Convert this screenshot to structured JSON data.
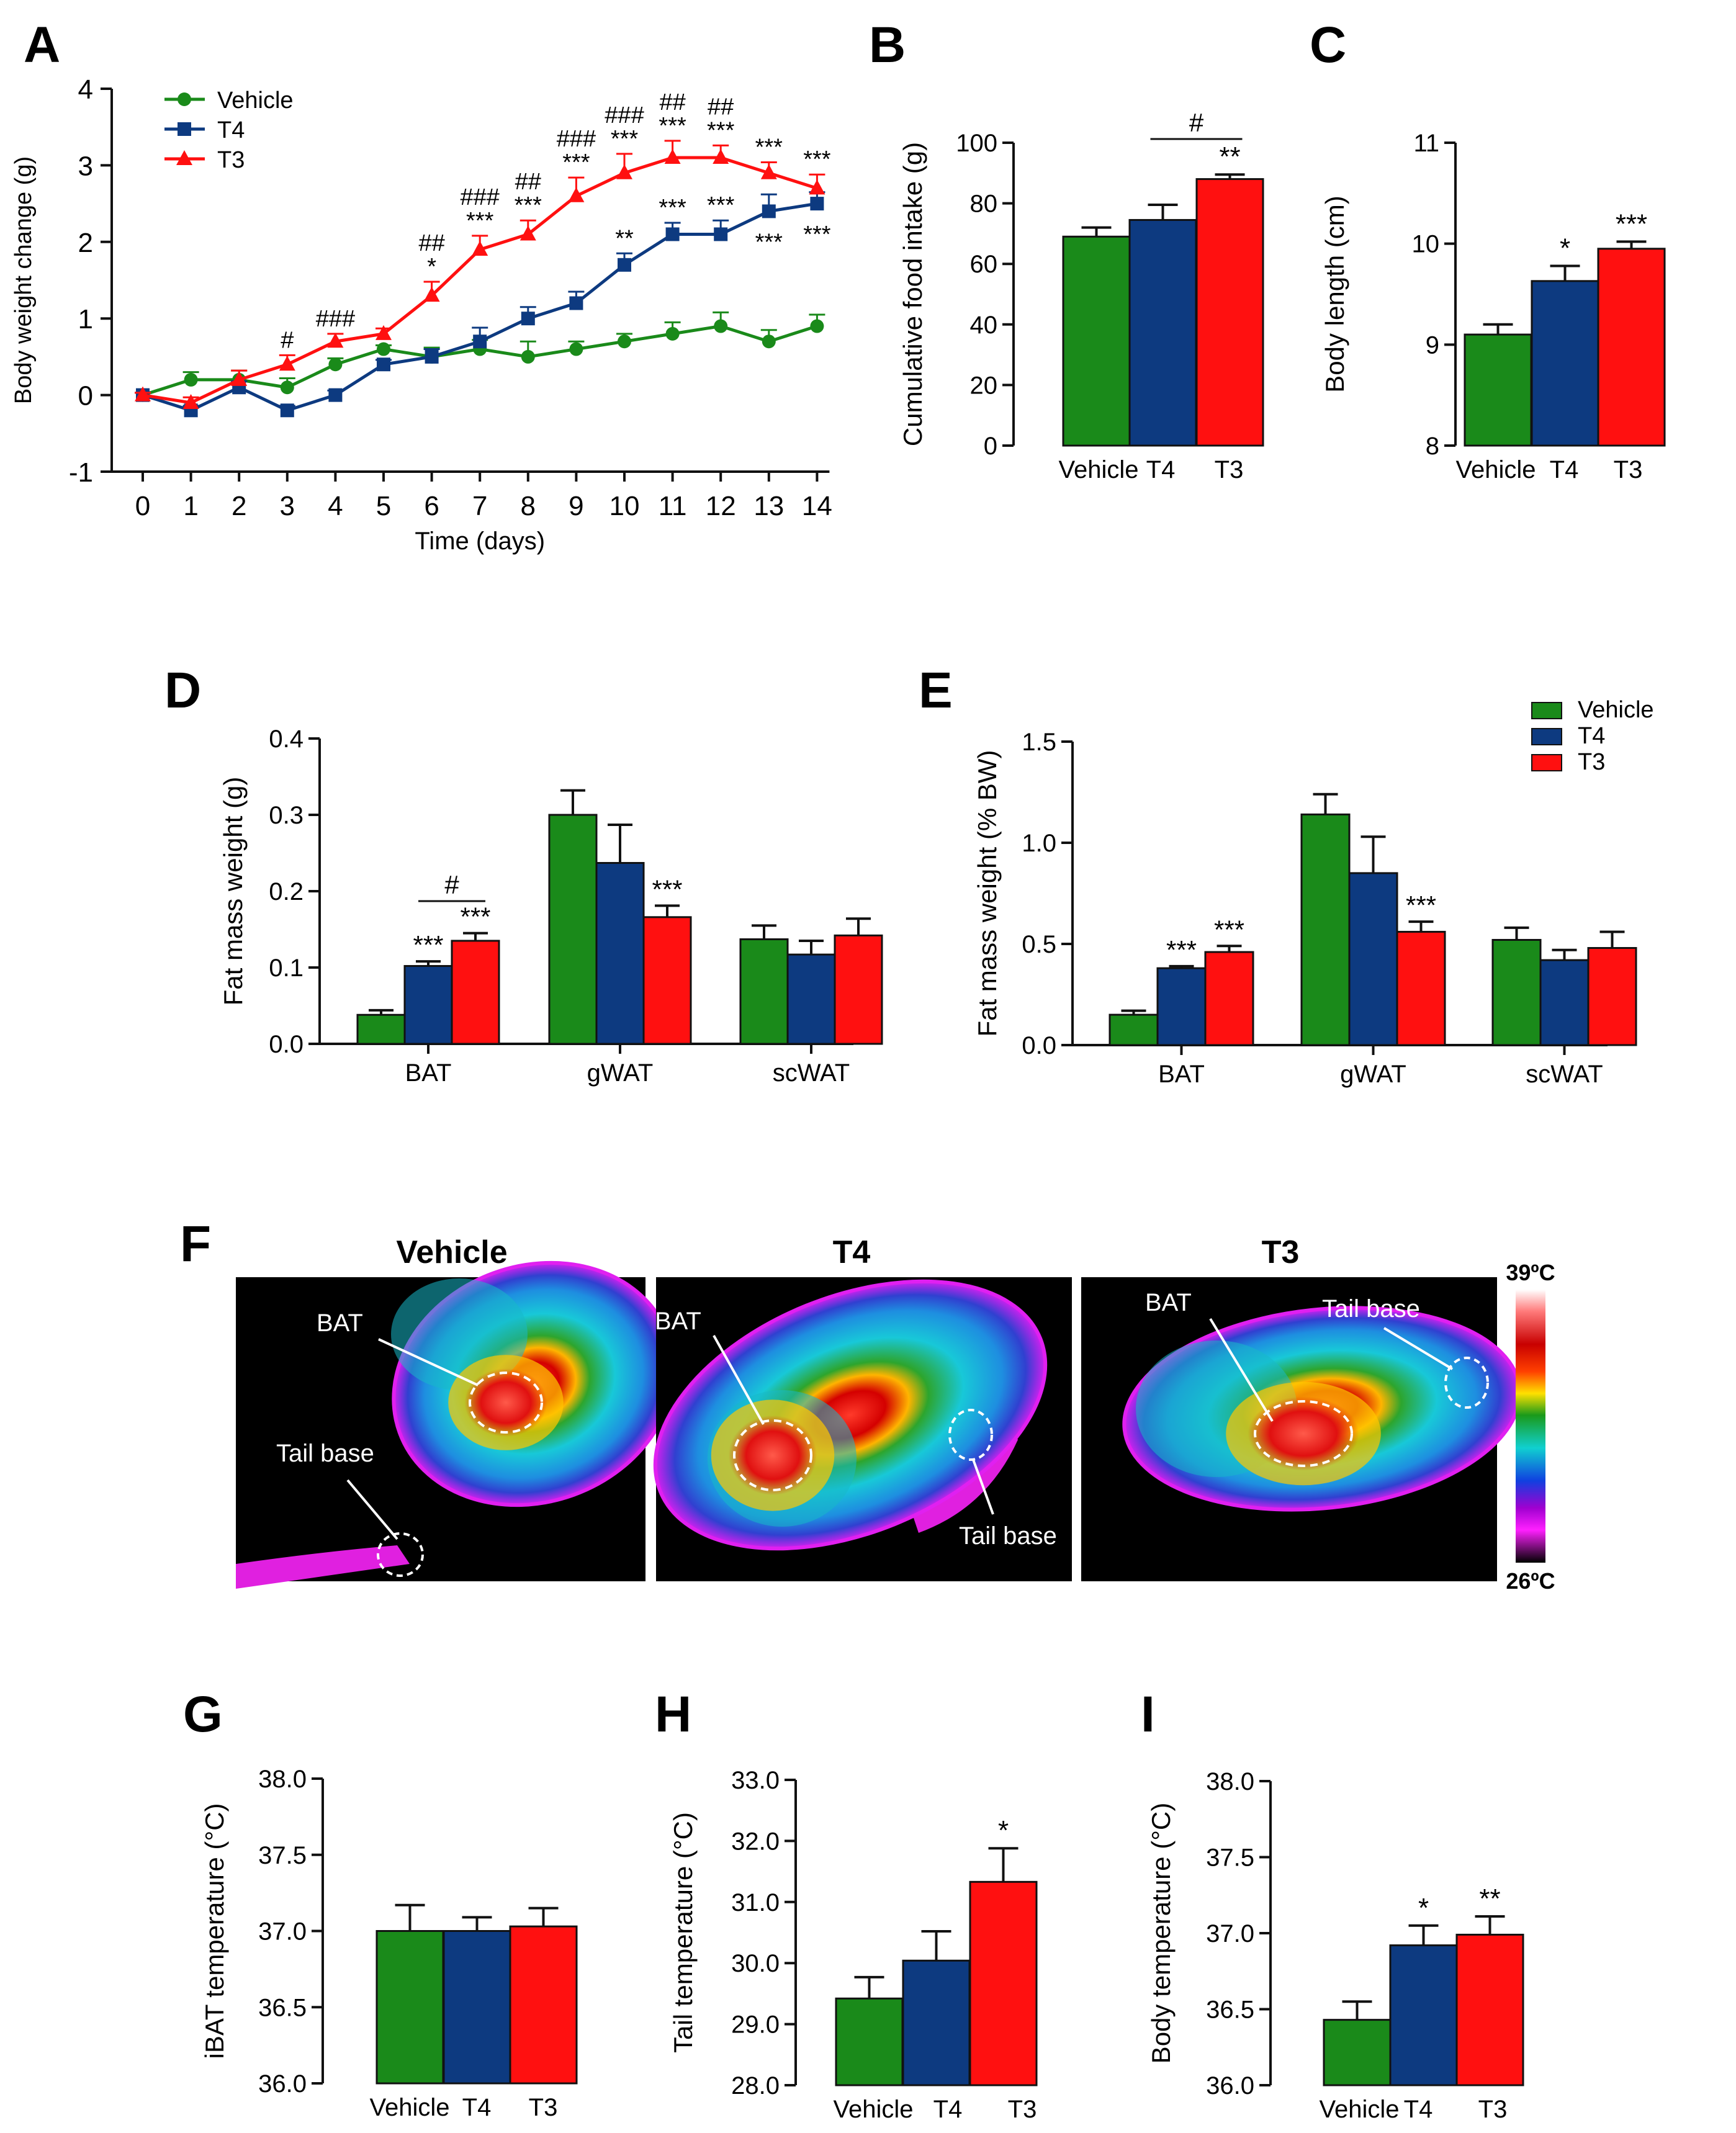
{
  "colors": {
    "vehicle": "#1a8a1a",
    "t4": "#0d3a80",
    "t3": "#ff1010"
  },
  "chart_data": [
    {
      "id": "A",
      "panel_letter": "A",
      "type": "line",
      "title": "",
      "xlabel": "Time (days)",
      "ylabel": "Body weight change (g)",
      "ylim": [
        -1,
        4
      ],
      "yticks": [
        -1,
        0,
        1,
        2,
        3,
        4
      ],
      "x": [
        0,
        1,
        2,
        3,
        4,
        5,
        6,
        7,
        8,
        9,
        10,
        11,
        12,
        13,
        14
      ],
      "legend": {
        "placement": "top-left"
      },
      "series": [
        {
          "key": "vehicle",
          "name": "Vehicle",
          "marker": "circle",
          "values": [
            0,
            0.2,
            0.2,
            0.1,
            0.4,
            0.6,
            0.5,
            0.6,
            0.5,
            0.6,
            0.7,
            0.8,
            0.9,
            0.7,
            0.9
          ],
          "errors": [
            0.03,
            0.1,
            0.12,
            0.12,
            0.08,
            0.05,
            0.12,
            0.12,
            0.2,
            0.1,
            0.1,
            0.15,
            0.18,
            0.15,
            0.15
          ]
        },
        {
          "key": "t4",
          "name": "T4",
          "marker": "square",
          "values": [
            0,
            -0.2,
            0.1,
            -0.2,
            0,
            0.4,
            0.5,
            0.7,
            1.0,
            1.2,
            1.7,
            2.1,
            2.1,
            2.4,
            2.5
          ],
          "errors": [
            0.03,
            0.06,
            0.08,
            0.06,
            0.06,
            0.06,
            0.1,
            0.18,
            0.15,
            0.15,
            0.15,
            0.15,
            0.18,
            0.22,
            0.15
          ],
          "annotations": [
            {
              "x": 10,
              "text": "**",
              "pos": "above"
            },
            {
              "x": 11,
              "text": "***",
              "pos": "above"
            },
            {
              "x": 12,
              "text": "***",
              "pos": "above"
            },
            {
              "x": 13,
              "text": "***",
              "pos": "below"
            },
            {
              "x": 14,
              "text": "***",
              "pos": "below"
            }
          ]
        },
        {
          "key": "t3",
          "name": "T3",
          "marker": "triangle",
          "values": [
            0,
            -0.1,
            0.2,
            0.4,
            0.7,
            0.8,
            1.3,
            1.9,
            2.1,
            2.6,
            2.9,
            3.1,
            3.1,
            2.9,
            2.7
          ],
          "errors": [
            0.03,
            0.07,
            0.12,
            0.12,
            0.1,
            0.07,
            0.18,
            0.18,
            0.18,
            0.24,
            0.25,
            0.22,
            0.16,
            0.14,
            0.18
          ],
          "annotations": [
            {
              "x": 3,
              "lines": [
                "#"
              ]
            },
            {
              "x": 4,
              "lines": [
                "###"
              ]
            },
            {
              "x": 6,
              "lines": [
                "##",
                "*"
              ]
            },
            {
              "x": 7,
              "lines": [
                "###",
                "***"
              ]
            },
            {
              "x": 8,
              "lines": [
                "##",
                "***"
              ]
            },
            {
              "x": 9,
              "lines": [
                "###",
                "***"
              ]
            },
            {
              "x": 10,
              "lines": [
                "###",
                "***"
              ]
            },
            {
              "x": 11,
              "lines": [
                "##",
                "***"
              ]
            },
            {
              "x": 12,
              "lines": [
                "##",
                "***"
              ]
            },
            {
              "x": 13,
              "lines": [
                "***"
              ]
            },
            {
              "x": 14,
              "lines": [
                "***"
              ]
            }
          ]
        }
      ]
    },
    {
      "id": "B",
      "panel_letter": "B",
      "type": "bar",
      "ylabel": "Cumulative food intake (g)",
      "ylim": [
        0,
        100
      ],
      "yticks": [
        0,
        20,
        40,
        60,
        80,
        100
      ],
      "categories": [
        "Vehicle",
        "T4",
        "T3"
      ],
      "values": [
        69,
        74.5,
        88
      ],
      "errors": [
        3,
        5,
        1.5
      ],
      "stars": [
        "",
        "",
        "**"
      ],
      "brackets": [
        {
          "from": 1,
          "to": 2,
          "label": "#"
        }
      ]
    },
    {
      "id": "C",
      "panel_letter": "C",
      "type": "bar",
      "ylabel": "Body length (cm)",
      "ylim": [
        8,
        11
      ],
      "yticks": [
        8,
        9,
        10,
        11
      ],
      "categories": [
        "Vehicle",
        "T4",
        "T3"
      ],
      "values": [
        9.1,
        9.63,
        9.95
      ],
      "errors": [
        0.1,
        0.15,
        0.07
      ],
      "stars": [
        "",
        "*",
        "***"
      ],
      "brackets": []
    },
    {
      "id": "D",
      "panel_letter": "D",
      "type": "grouped-bar",
      "ylabel": "Fat mass weight (g)",
      "ylim": [
        0,
        0.4
      ],
      "yticks": [
        "0.0",
        "0.1",
        "0.2",
        "0.3",
        "0.4"
      ],
      "categories": [
        "BAT",
        "gWAT",
        "scWAT"
      ],
      "series": [
        {
          "key": "vehicle",
          "name": "Vehicle",
          "values": [
            0.038,
            0.3,
            0.137
          ],
          "errors": [
            0.006,
            0.032,
            0.018
          ],
          "stars": [
            "",
            "",
            ""
          ]
        },
        {
          "key": "t4",
          "name": "T4",
          "values": [
            0.102,
            0.237,
            0.117
          ],
          "errors": [
            0.006,
            0.05,
            0.018
          ],
          "stars": [
            "***",
            "",
            ""
          ]
        },
        {
          "key": "t3",
          "name": "T3",
          "values": [
            0.135,
            0.166,
            0.142
          ],
          "errors": [
            0.01,
            0.015,
            0.022
          ],
          "stars": [
            "***",
            "***",
            ""
          ]
        }
      ],
      "brackets": [
        {
          "group": 0,
          "from": 1,
          "to": 2,
          "label": "#"
        }
      ]
    },
    {
      "id": "E",
      "panel_letter": "E",
      "type": "grouped-bar",
      "ylabel": "Fat mass weight (% BW)",
      "ylim": [
        0,
        1.5
      ],
      "yticks": [
        "0.0",
        "0.5",
        "1.0",
        "1.5"
      ],
      "categories": [
        "BAT",
        "gWAT",
        "scWAT"
      ],
      "legend": {
        "placement": "top-right",
        "entries": [
          "Vehicle",
          "T4",
          "T3"
        ]
      },
      "series": [
        {
          "key": "vehicle",
          "name": "Vehicle",
          "values": [
            0.15,
            1.14,
            0.52
          ],
          "errors": [
            0.02,
            0.1,
            0.06
          ],
          "stars": [
            "",
            "",
            ""
          ]
        },
        {
          "key": "t4",
          "name": "T4",
          "values": [
            0.38,
            0.85,
            0.42
          ],
          "errors": [
            0.01,
            0.18,
            0.05
          ],
          "stars": [
            "***",
            "",
            ""
          ]
        },
        {
          "key": "t3",
          "name": "T3",
          "values": [
            0.46,
            0.56,
            0.48
          ],
          "errors": [
            0.03,
            0.05,
            0.08
          ],
          "stars": [
            "***",
            "***",
            ""
          ]
        }
      ],
      "brackets": []
    },
    {
      "id": "G",
      "panel_letter": "G",
      "type": "bar",
      "ylabel": "iBAT temperature (°C)",
      "ylim": [
        36,
        38
      ],
      "yticks": [
        "36.0",
        "36.5",
        "37.0",
        "37.5",
        "38.0"
      ],
      "categories": [
        "Vehicle",
        "T4",
        "T3"
      ],
      "values": [
        37.0,
        37.0,
        37.03
      ],
      "errors": [
        0.17,
        0.09,
        0.12
      ],
      "stars": [
        "",
        "",
        ""
      ],
      "brackets": []
    },
    {
      "id": "H",
      "panel_letter": "H",
      "type": "bar",
      "ylabel": "Tail temperature (°C)",
      "ylim": [
        28,
        33
      ],
      "yticks": [
        "28.0",
        "29.0",
        "30.0",
        "31.0",
        "32.0",
        "33.0"
      ],
      "categories": [
        "Vehicle",
        "T4",
        "T3"
      ],
      "values": [
        29.42,
        30.04,
        31.33
      ],
      "errors": [
        0.35,
        0.48,
        0.55
      ],
      "stars": [
        "",
        "",
        "*"
      ],
      "brackets": []
    },
    {
      "id": "I",
      "panel_letter": "I",
      "type": "bar",
      "ylabel": "Body temperature (°C)",
      "ylim": [
        36,
        38
      ],
      "yticks": [
        "36.0",
        "36.5",
        "37.0",
        "37.5",
        "38.0"
      ],
      "categories": [
        "Vehicle",
        "T4",
        "T3"
      ],
      "values": [
        36.43,
        36.92,
        36.99
      ],
      "errors": [
        0.12,
        0.13,
        0.12
      ],
      "stars": [
        "",
        "*",
        "**"
      ],
      "brackets": []
    }
  ],
  "thermal": {
    "panel_letter": "F",
    "images": [
      {
        "title": "Vehicle",
        "labels": [
          "BAT",
          "Tail base"
        ]
      },
      {
        "title": "T4",
        "labels": [
          "BAT",
          "Tail base"
        ]
      },
      {
        "title": "T3",
        "labels": [
          "BAT",
          "Tail base"
        ]
      }
    ],
    "scale": {
      "max_label": "39ºC",
      "min_label": "26ºC"
    }
  }
}
